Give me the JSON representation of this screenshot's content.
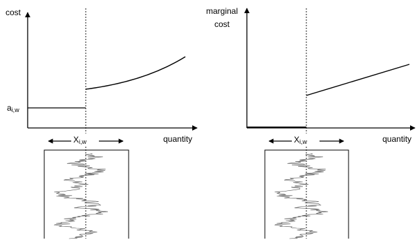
{
  "left_panel": {
    "y_axis_label": "cost",
    "x_axis_label": "quantity",
    "level_label": "a",
    "level_subscript": "i,w",
    "threshold_label": "X",
    "threshold_subscript": "i,w"
  },
  "right_panel": {
    "y_axis_label_line1": "marginal",
    "y_axis_label_line2": "cost",
    "x_axis_label": "quantity",
    "threshold_label": "X",
    "threshold_subscript": "i,w"
  }
}
